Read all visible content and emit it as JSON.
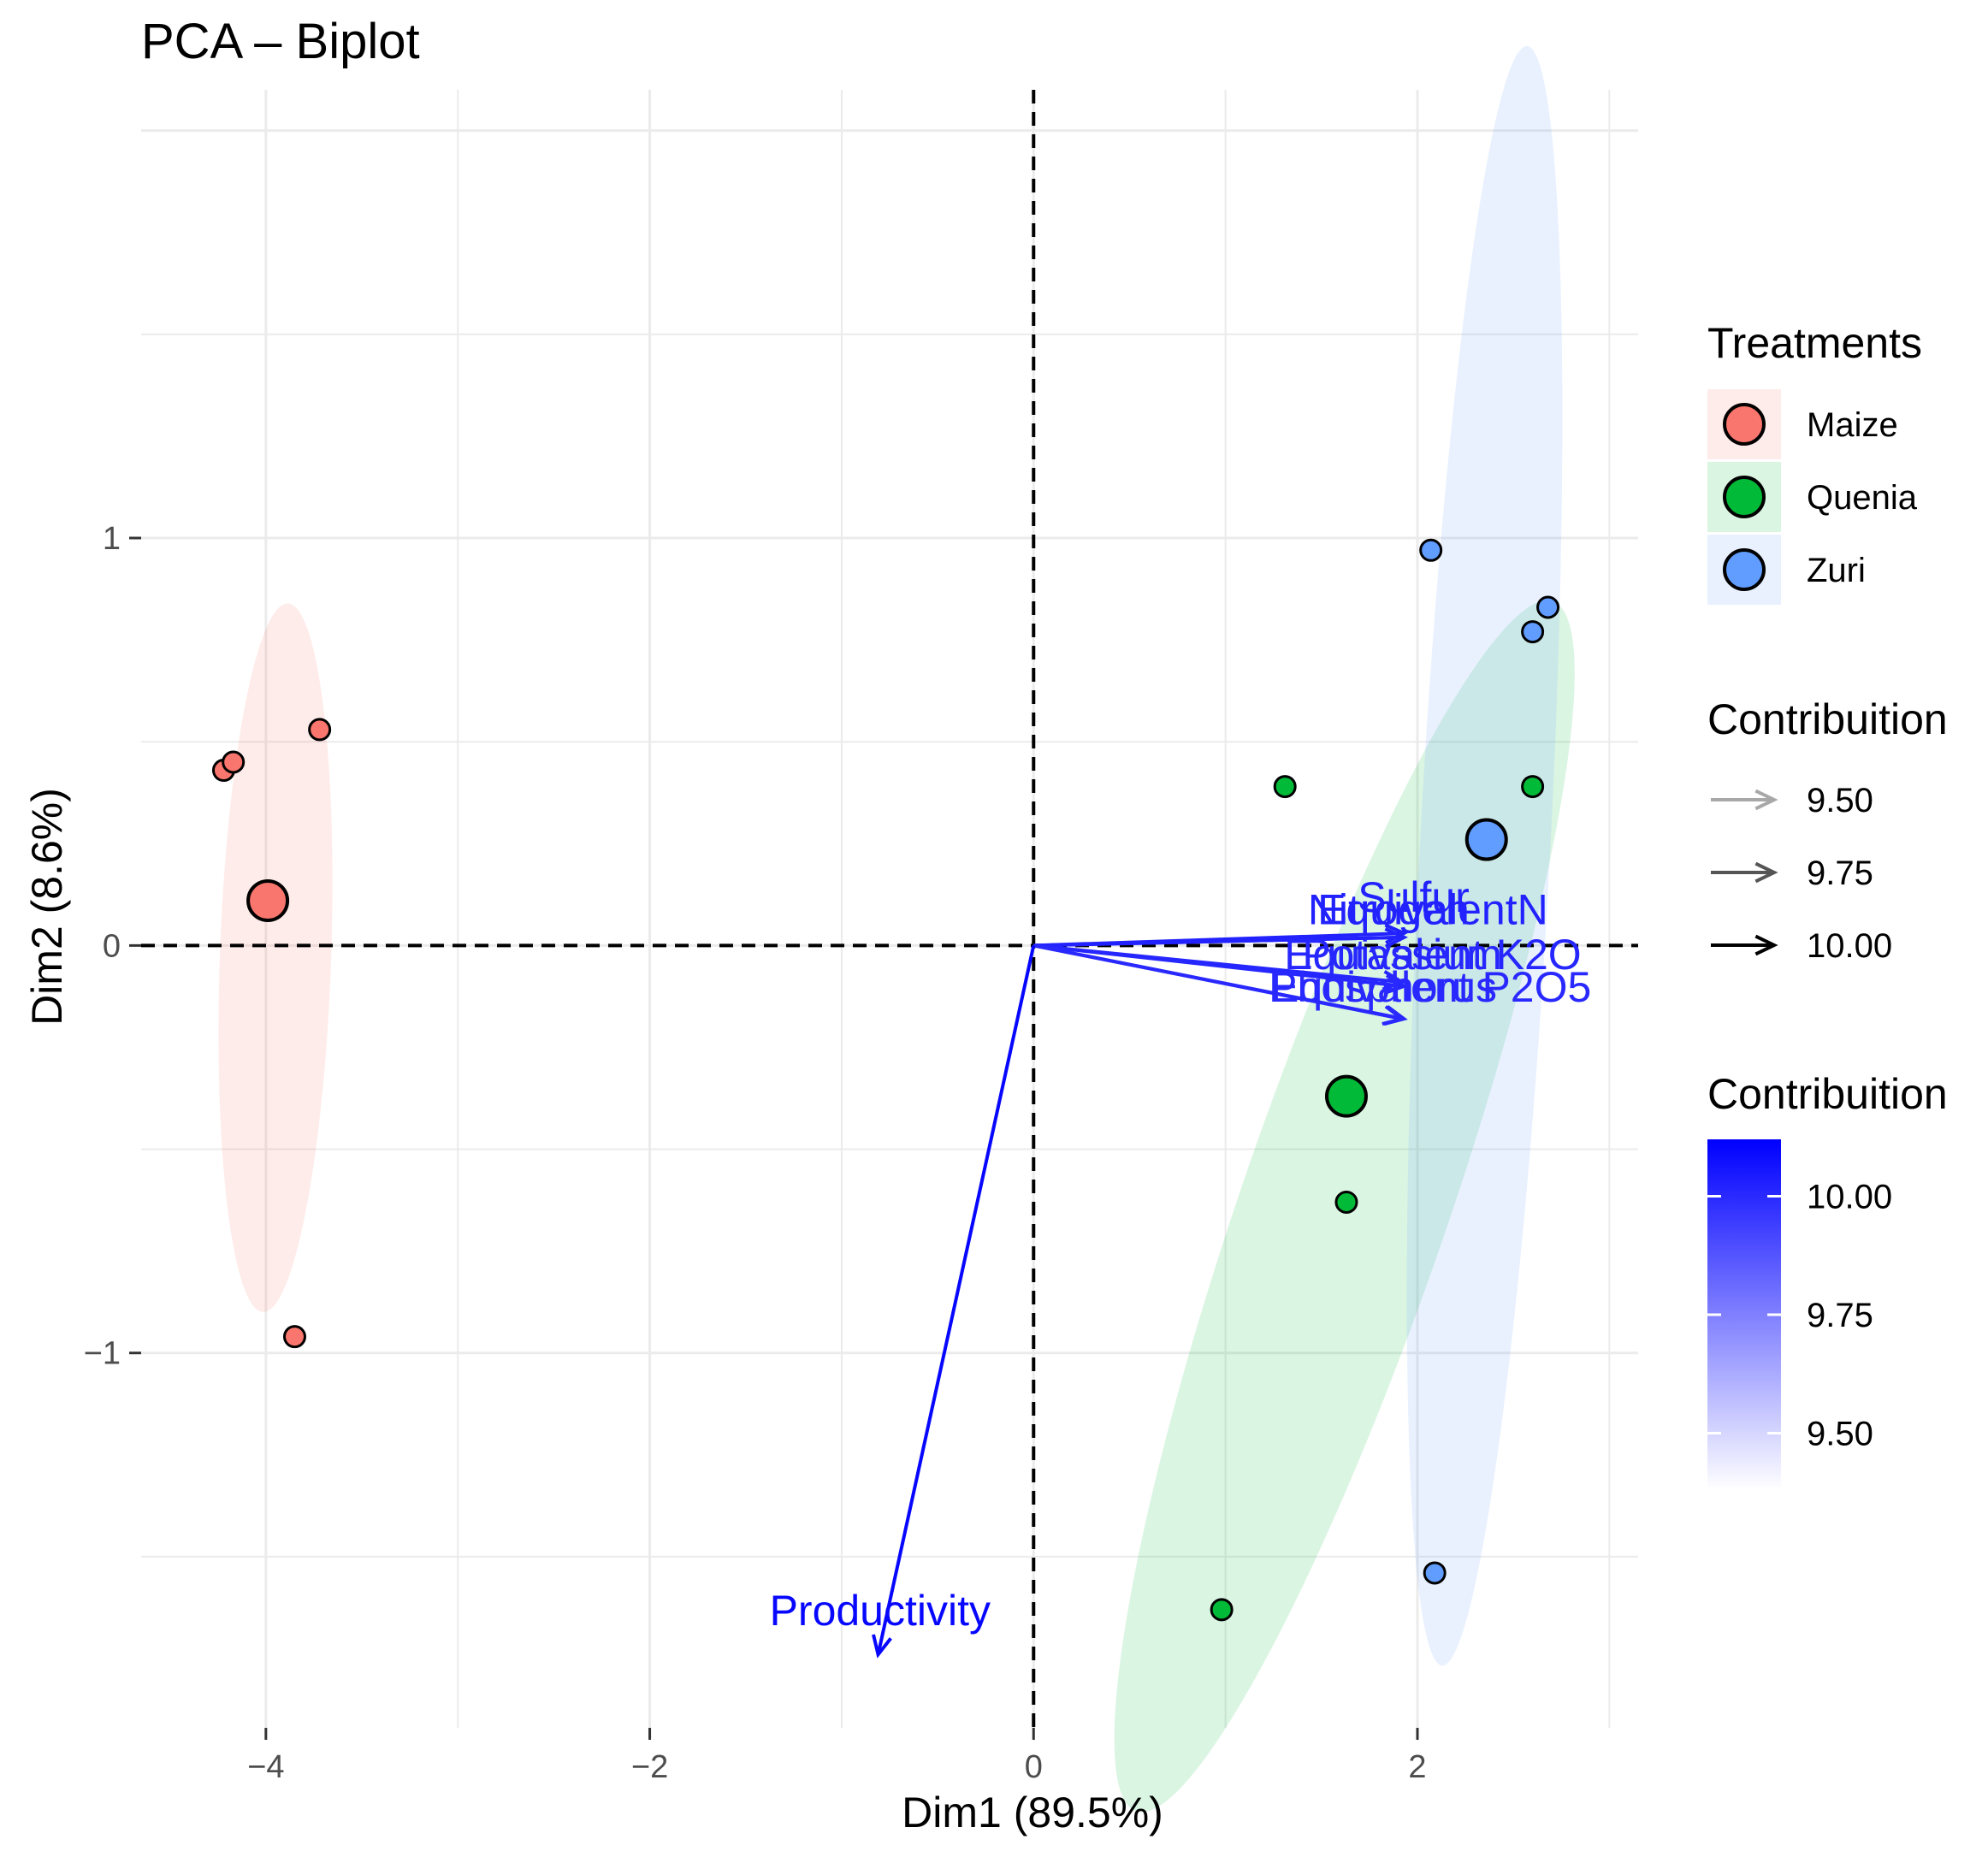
{
  "chart_data": {
    "type": "scatter",
    "title": "PCA – Biplot",
    "xlabel": "Dim1 (89.5%)",
    "ylabel": "Dim2 (8.6%)",
    "xlim": [
      -4.65,
      3.15
    ],
    "ylim": [
      -1.92,
      2.1
    ],
    "x_ticks": [
      -4,
      -2,
      0,
      2
    ],
    "x_tick_labels": [
      "−4",
      "−2",
      "0",
      "2"
    ],
    "y_ticks": [
      -1,
      0,
      1
    ],
    "y_tick_labels": [
      "−1",
      "0",
      "1"
    ],
    "grid": true,
    "reference_lines": {
      "x": 0,
      "y": 0,
      "style": "dashed"
    },
    "groups": [
      {
        "name": "Maize",
        "color": "#F8766D",
        "points": [
          [
            -4.22,
            0.43
          ],
          [
            -4.17,
            0.45
          ],
          [
            -3.72,
            0.53
          ],
          [
            -3.85,
            -0.96
          ]
        ],
        "centroid": [
          -3.99,
          0.11
        ],
        "ellipse": {
          "center": [
            -3.95,
            -0.03
          ],
          "rx": 0.29,
          "ry": 0.87,
          "rotation_deg": 2
        }
      },
      {
        "name": "Quenia",
        "color": "#00BA38",
        "points": [
          [
            1.31,
            0.39
          ],
          [
            2.6,
            0.39
          ],
          [
            1.63,
            -0.63
          ],
          [
            0.98,
            -1.63
          ]
        ],
        "centroid": [
          1.63,
          -0.37
        ],
        "ellipse": {
          "center": [
            1.62,
            -0.64
          ],
          "rx": 0.54,
          "ry": 1.57,
          "rotation_deg": 19
        }
      },
      {
        "name": "Zuri",
        "color": "#619CFF",
        "points": [
          [
            2.07,
            0.97
          ],
          [
            2.6,
            0.77
          ],
          [
            2.68,
            0.83
          ],
          [
            2.09,
            -1.54
          ]
        ],
        "centroid": [
          2.36,
          0.26
        ],
        "ellipse": {
          "center": [
            2.35,
            0.22
          ],
          "rx": 0.34,
          "ry": 1.99,
          "rotation_deg": 3
        }
      }
    ],
    "variables": [
      {
        "name": "Sulfur",
        "end": [
          1.93,
          0.03
        ],
        "label_pos": [
          1.98,
          0.11
        ],
        "contribution": 10.02
      },
      {
        "name": "Nitrogen",
        "end": [
          1.93,
          0.02
        ],
        "label_pos": [
          1.85,
          0.08
        ],
        "contribution": 10.02
      },
      {
        "name": "EquivalentN",
        "end": [
          1.93,
          0.02
        ],
        "label_pos": [
          2.08,
          0.08
        ],
        "contribution": 10.02
      },
      {
        "name": "Potassium",
        "end": [
          1.92,
          -0.09
        ],
        "label_pos": [
          1.92,
          -0.03
        ],
        "contribution": 10.01
      },
      {
        "name": "Equivalent K2O",
        "end": [
          1.93,
          -0.1
        ],
        "label_pos": [
          2.08,
          -0.03
        ],
        "contribution": 10.01
      },
      {
        "name": "Phosphorus",
        "end": [
          1.92,
          -0.18
        ],
        "label_pos": [
          1.82,
          -0.11
        ],
        "contribution": 10.0
      },
      {
        "name": "Equivalent P2O5",
        "end": [
          1.93,
          -0.18
        ],
        "label_pos": [
          2.07,
          -0.11
        ],
        "contribution": 10.0
      },
      {
        "name": "Productivity",
        "end": [
          -0.81,
          -1.74
        ],
        "label_pos": [
          -0.8,
          -1.64
        ],
        "contribution": 10.1
      }
    ],
    "legends": {
      "treatments": {
        "title": "Treatments",
        "entries": [
          "Maize",
          "Quenia",
          "Zuri"
        ]
      },
      "contribution_arrows": {
        "title": "Contribuition",
        "entries": [
          "9.50",
          "9.75",
          "10.00"
        ],
        "values": [
          9.5,
          9.75,
          10.0
        ],
        "colors": [
          "#a8a8a8",
          "#555555",
          "#000000"
        ]
      },
      "contribution_gradient": {
        "title": "Contribuition",
        "labels": [
          "10.00",
          "9.75",
          "9.50"
        ],
        "values": [
          10.0,
          9.75,
          9.5
        ],
        "range": [
          9.38,
          10.12
        ],
        "color_low": "#ffffff",
        "color_high": "#0000ff"
      }
    }
  }
}
